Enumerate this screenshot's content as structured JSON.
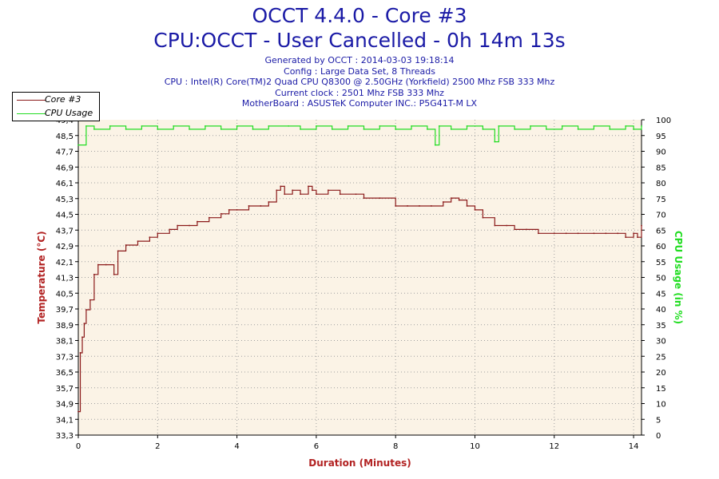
{
  "header": {
    "title": "OCCT 4.4.0 - Core #3",
    "subtitle": "CPU:OCCT - User Cancelled - 0h 14m 13s",
    "info_lines": [
      "Generated by OCCT : 2014-03-03 19:18:14",
      "Config : Large Data Set, 8 Threads",
      "CPU : Intel(R) Core(TM)2 Quad CPU Q8300 @ 2.50GHz (Yorkfield) 2500 Mhz FSB 333 Mhz",
      "Current clock : 2501 Mhz FSB 333 Mhz",
      "MotherBoard : ASUSTeK Computer INC.: P5G41T-M LX"
    ]
  },
  "colors": {
    "temperature": "#8b1a1a",
    "cpu_usage": "#22dd22",
    "plot_bg": "#fbf3e6",
    "grid": "#a0a0a0",
    "title": "#1a1aa6"
  },
  "chart_data": {
    "type": "line",
    "title": "OCCT 4.4.0 - Core #3",
    "xlabel": "Duration (Minutes)",
    "ylabel_left": "Temperature (°C)",
    "ylabel_right": "CPU Usage (in %)",
    "xlim": [
      0,
      14.2
    ],
    "ylim_left": [
      33.3,
      49.4
    ],
    "ylim_right": [
      0,
      100
    ],
    "x_ticks": [
      "0",
      "2",
      "4",
      "6",
      "8",
      "10",
      "12",
      "14"
    ],
    "y_left_ticks": [
      "33,3",
      "34,1",
      "34,9",
      "35,7",
      "36,5",
      "37,3",
      "38,1",
      "38,9",
      "39,7",
      "40,5",
      "41,3",
      "42,1",
      "42,9",
      "43,7",
      "44,5",
      "45,3",
      "46,1",
      "46,9",
      "47,7",
      "48,5",
      "49,4"
    ],
    "y_right_ticks": [
      "0",
      "5",
      "10",
      "15",
      "20",
      "25",
      "30",
      "35",
      "40",
      "45",
      "50",
      "55",
      "60",
      "65",
      "70",
      "75",
      "80",
      "85",
      "90",
      "95",
      "100"
    ],
    "grid": true,
    "legend_position": "top-left",
    "series": [
      {
        "name": "Core #3",
        "axis": "left",
        "x": [
          0,
          0.05,
          0.1,
          0.15,
          0.2,
          0.3,
          0.4,
          0.5,
          0.7,
          0.9,
          1.0,
          1.2,
          1.5,
          1.8,
          2.0,
          2.3,
          2.5,
          2.8,
          3.0,
          3.3,
          3.6,
          3.8,
          4.0,
          4.3,
          4.6,
          4.8,
          5.0,
          5.1,
          5.2,
          5.4,
          5.6,
          5.8,
          5.9,
          6.0,
          6.3,
          6.6,
          7.0,
          7.2,
          7.6,
          8.0,
          8.3,
          8.6,
          8.9,
          9.2,
          9.4,
          9.6,
          9.8,
          10.0,
          10.2,
          10.5,
          10.8,
          11.0,
          11.3,
          11.6,
          12.0,
          12.3,
          12.6,
          13.0,
          13.3,
          13.6,
          13.8,
          14.0,
          14.1,
          14.2
        ],
        "y": [
          34.5,
          37.5,
          38.3,
          39.0,
          39.7,
          40.2,
          41.5,
          42.0,
          42.0,
          41.5,
          42.7,
          43.0,
          43.2,
          43.4,
          43.6,
          43.8,
          44.0,
          44.0,
          44.2,
          44.4,
          44.6,
          44.8,
          44.8,
          45.0,
          45.0,
          45.2,
          45.8,
          46.0,
          45.6,
          45.8,
          45.6,
          46.0,
          45.8,
          45.6,
          45.8,
          45.6,
          45.6,
          45.4,
          45.4,
          45.0,
          45.0,
          45.0,
          45.0,
          45.2,
          45.4,
          45.3,
          45.0,
          44.8,
          44.4,
          44.0,
          44.0,
          43.8,
          43.8,
          43.6,
          43.6,
          43.6,
          43.6,
          43.6,
          43.6,
          43.6,
          43.4,
          43.6,
          43.4,
          44.0
        ]
      },
      {
        "name": "CPU Usage",
        "axis": "right",
        "x": [
          0,
          0.2,
          0.4,
          0.8,
          1.2,
          1.6,
          2.0,
          2.4,
          2.8,
          3.2,
          3.6,
          4.0,
          4.4,
          4.8,
          5.3,
          5.6,
          6.0,
          6.4,
          6.8,
          7.2,
          7.6,
          8.0,
          8.4,
          8.8,
          9.0,
          9.1,
          9.4,
          9.8,
          10.2,
          10.5,
          10.6,
          11.0,
          11.4,
          11.8,
          12.2,
          12.6,
          13.0,
          13.4,
          13.8,
          14.0,
          14.2
        ],
        "y": [
          92,
          98,
          97,
          98,
          97,
          98,
          97,
          98,
          97,
          98,
          97,
          98,
          97,
          98,
          98,
          97,
          98,
          97,
          98,
          97,
          98,
          97,
          98,
          97,
          92,
          98,
          97,
          98,
          97,
          93,
          98,
          97,
          98,
          97,
          98,
          97,
          98,
          97,
          98,
          97,
          98
        ]
      }
    ]
  }
}
